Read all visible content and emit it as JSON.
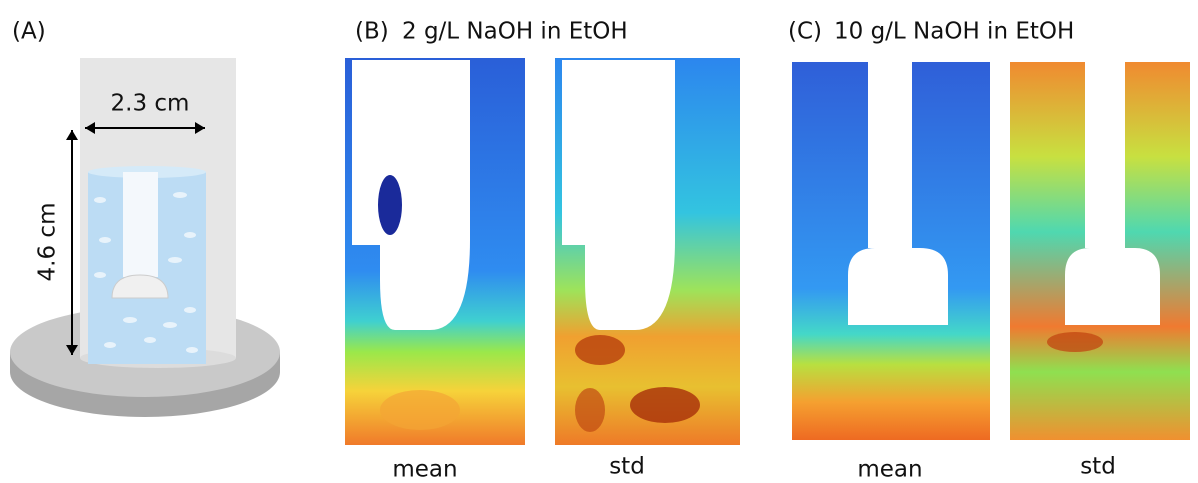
{
  "panels": [
    {
      "label": "(A)",
      "dimensions": {
        "width": "2.3 cm",
        "height": "4.6 cm"
      }
    },
    {
      "label": "(B)",
      "title": "2 g/L NaOH in EtOH",
      "captions": [
        "mean",
        "std"
      ]
    },
    {
      "label": "(C)",
      "title": "10 g/L NaOH in EtOH",
      "captions": [
        "mean",
        "std"
      ]
    }
  ]
}
